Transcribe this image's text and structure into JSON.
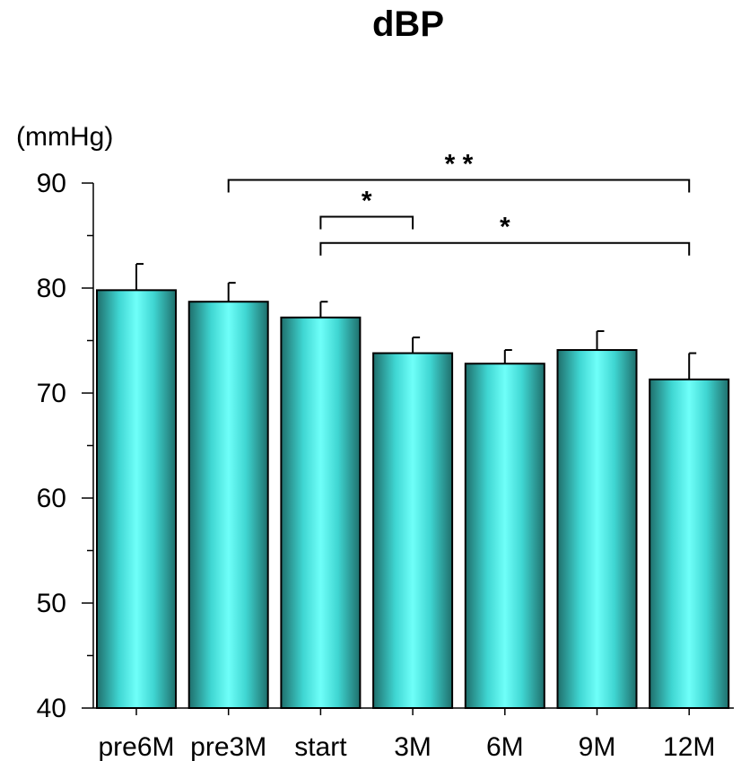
{
  "chart_data": {
    "type": "bar",
    "title": "dBP",
    "ylabel": "(mmHg)",
    "xlabel": "",
    "ylim": [
      40,
      90
    ],
    "yticks": [
      40,
      50,
      60,
      70,
      80,
      90
    ],
    "categories": [
      "pre6M",
      "pre3M",
      "start",
      "3M",
      "6M",
      "9M",
      "12M"
    ],
    "values": [
      79.8,
      78.7,
      77.2,
      73.8,
      72.8,
      74.1,
      71.3
    ],
    "errors": [
      2.5,
      1.8,
      1.5,
      1.5,
      1.3,
      1.8,
      2.5
    ],
    "bar_color": "#3FE0DC",
    "grid": false,
    "significance": [
      {
        "from": "start",
        "to": "3M",
        "label": "*",
        "level": 86.8
      },
      {
        "from": "pre3M",
        "to": "12M",
        "label": "* *",
        "level": 90.3
      },
      {
        "from": "start",
        "to": "12M",
        "label": "*",
        "level": 84.3
      }
    ]
  }
}
